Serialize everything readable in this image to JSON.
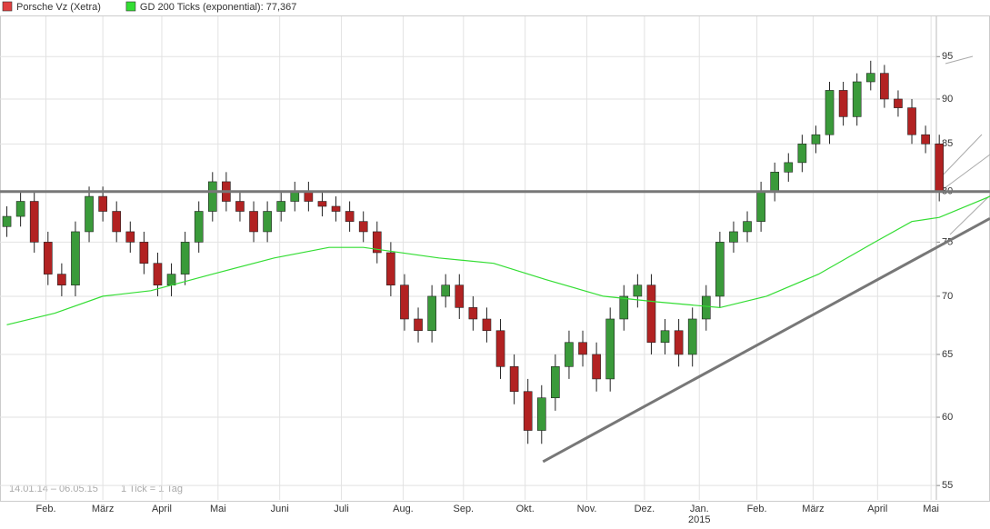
{
  "chart_data": {
    "type": "candlestick",
    "series": [
      {
        "name": "Porsche Vz (Xetra)",
        "color": "#e04040",
        "up_color": "#3a9a3a",
        "down_color": "#b22222",
        "open": [
          76.5,
          77.5,
          79,
          75,
          72,
          71,
          76,
          79.5,
          78,
          76,
          75,
          73,
          71,
          72,
          75,
          78,
          81,
          79,
          78,
          76,
          78,
          79,
          80,
          79,
          78.5,
          78,
          77,
          76,
          74,
          71,
          68,
          67,
          70,
          71,
          69,
          68,
          67,
          64,
          62,
          59,
          61.5,
          64,
          66,
          65,
          63,
          68,
          70,
          71,
          66,
          67,
          65,
          68,
          70,
          75,
          76,
          77,
          80,
          82,
          83,
          85,
          86,
          91,
          88,
          92,
          93,
          90,
          89,
          86,
          85
        ],
        "high": [
          78.5,
          80,
          80,
          76,
          73,
          77,
          80.5,
          80.5,
          79,
          77,
          76,
          74,
          73,
          76,
          79,
          82,
          82,
          80,
          79,
          79,
          80,
          81,
          81,
          80,
          79.5,
          79,
          78,
          77,
          75,
          72,
          69,
          71,
          72,
          72,
          70,
          69,
          68,
          65,
          63,
          62.5,
          65,
          67,
          67,
          66,
          69,
          71,
          72,
          72,
          68,
          68,
          69,
          71,
          76,
          77,
          78,
          81,
          83,
          84,
          86,
          87,
          92,
          92,
          93,
          94.5,
          94,
          91,
          90,
          87,
          86
        ],
        "low": [
          75.5,
          76.5,
          74,
          71,
          70,
          70,
          75,
          77,
          75,
          74,
          72,
          70,
          70,
          71,
          74,
          77,
          78,
          77,
          75,
          75,
          77,
          78,
          78,
          77.5,
          77,
          76,
          75,
          73,
          70,
          67,
          66,
          66,
          69,
          68,
          67,
          66,
          63,
          61,
          58,
          58,
          60.5,
          63,
          64,
          62,
          62,
          67,
          69,
          65,
          65,
          64,
          64,
          67,
          69,
          74,
          75,
          76,
          79,
          81,
          82,
          84,
          85,
          87,
          87,
          91,
          89,
          88,
          85,
          84,
          79
        ],
        "close": [
          77.5,
          79,
          75,
          72,
          71,
          76,
          79.5,
          78,
          76,
          75,
          73,
          71,
          72,
          75,
          78,
          81,
          79,
          78,
          76,
          78,
          79,
          80,
          79,
          78.5,
          78,
          77,
          76,
          74,
          71,
          68,
          67,
          70,
          71,
          69,
          68,
          67,
          64,
          62,
          59,
          61.5,
          64,
          66,
          65,
          63,
          68,
          70,
          71,
          66,
          67,
          65,
          68,
          70,
          75,
          76,
          77,
          80,
          82,
          83,
          85,
          86,
          91,
          88,
          92,
          93,
          90,
          89,
          86,
          85,
          80
        ]
      },
      {
        "name": "GD 200 Ticks (exponential): 77,367",
        "color": "#33dd33",
        "line": true,
        "x": [
          0,
          3.5,
          7,
          10.5,
          15,
          19.5,
          23.5,
          26,
          31.5,
          35.5,
          39.3,
          43.5,
          47.4,
          52,
          55.4,
          59.2,
          63.3,
          66,
          68,
          71.7
        ],
        "values": [
          67.5,
          68.5,
          70,
          70.5,
          72,
          73.5,
          74.5,
          74.5,
          73.5,
          73,
          71.5,
          70,
          69.5,
          69,
          70,
          72,
          75,
          77,
          77.4,
          79.5
        ]
      }
    ],
    "xlim": [
      -0.5,
      71.7
    ],
    "xticks": [
      {
        "value": 2.85,
        "label": "Feb."
      },
      {
        "value": 7.0,
        "label": "März"
      },
      {
        "value": 11.3,
        "label": "April"
      },
      {
        "value": 15.4,
        "label": "Mai"
      },
      {
        "value": 19.9,
        "label": "Juni"
      },
      {
        "value": 24.4,
        "label": "Juli"
      },
      {
        "value": 28.9,
        "label": "Aug."
      },
      {
        "value": 33.3,
        "label": "Sep."
      },
      {
        "value": 37.8,
        "label": "Okt."
      },
      {
        "value": 42.3,
        "label": "Nov."
      },
      {
        "value": 46.5,
        "label": "Dez."
      },
      {
        "value": 50.5,
        "label": "Jan."
      },
      {
        "value": 54.7,
        "label": "Feb."
      },
      {
        "value": 58.8,
        "label": "März"
      },
      {
        "value": 63.5,
        "label": "April"
      },
      {
        "value": 67.4,
        "label": "Mai"
      }
    ],
    "year_label": "2015",
    "ylim": [
      54,
      100
    ],
    "yticks": [
      55,
      60,
      65,
      70,
      75,
      80,
      85,
      90,
      95
    ],
    "log_scale": true,
    "grid": true,
    "lines": [
      {
        "x": [
          -0.5,
          71.7
        ],
        "values": [
          80,
          80
        ],
        "color": "#777777"
      },
      {
        "x": [
          39.1,
          71.7
        ],
        "values": [
          56.7,
          77.3
        ],
        "color": "#777777"
      }
    ],
    "range_note": "14.01.14 – 06.05.15",
    "tick_note": "1 Tick = 1 Tag"
  }
}
